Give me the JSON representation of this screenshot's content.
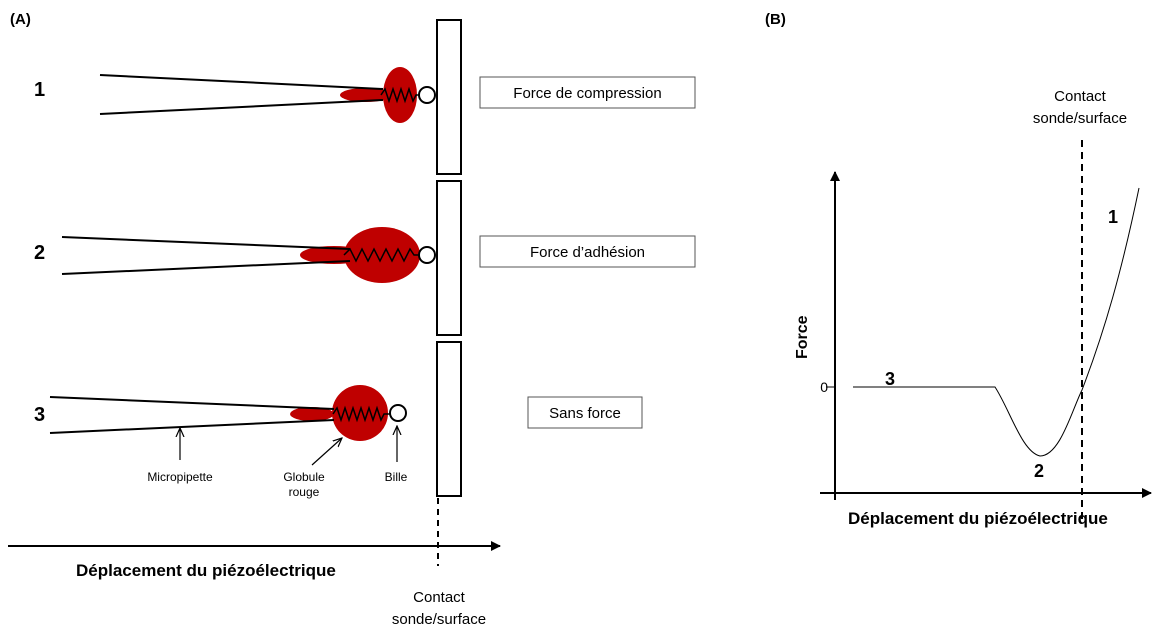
{
  "panel_a": {
    "label": "(A)",
    "rows": [
      {
        "number": "1",
        "caption": "Force de compression"
      },
      {
        "number": "2",
        "caption": "Force d’adhésion"
      },
      {
        "number": "3",
        "caption": "Sans force"
      }
    ],
    "annotations": {
      "micropipette": "Micropipette",
      "globule_line1": "Globule",
      "globule_line2": "rouge",
      "bille": "Bille"
    },
    "axis_label": "Déplacement du piézoélectrique",
    "contact_line1": "Contact",
    "contact_line2": "sonde/surface"
  },
  "panel_b": {
    "label": "(B)",
    "ylabel": "Force",
    "xlabel": "Déplacement du piézoélectrique",
    "zero_tick": "0",
    "contact_line1": "Contact",
    "contact_line2": "sonde/surface",
    "point_labels": [
      "1",
      "2",
      "3"
    ]
  },
  "colors": {
    "cell": "#bf0000",
    "line": "#000000"
  }
}
